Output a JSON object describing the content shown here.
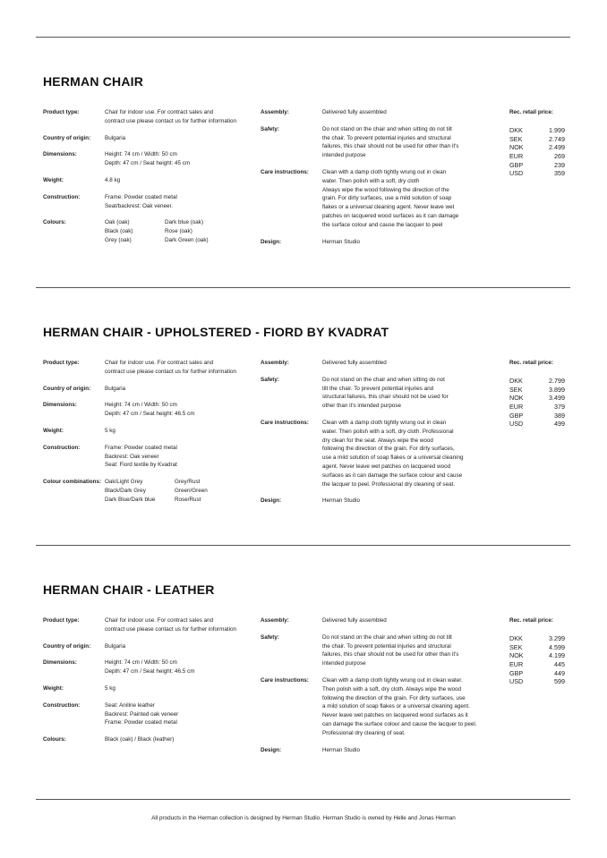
{
  "sections": [
    {
      "title": "HERMAN CHAIR",
      "left": [
        {
          "label": "Product type:",
          "lines": [
            "Chair for indoor use. For contract sales and",
            "contract use please contact us for further information"
          ]
        },
        {
          "label": "Country of origin:",
          "lines": [
            "Bulgaria"
          ]
        },
        {
          "label": "Dimensions:",
          "lines": [
            "Height: 74 cm / Width: 50 cm",
            "Depth: 47 cm / Seat height: 45 cm"
          ]
        },
        {
          "label": "Weight:",
          "lines": [
            "4.8 kg"
          ]
        },
        {
          "label": "Construction:",
          "lines": [
            "Frame: Powder coated metal",
            "Seat/backrest: Oak veneer."
          ]
        },
        {
          "label": "Colours:",
          "grid": [
            [
              "Oak (oak)",
              "Dark blue (oak)"
            ],
            [
              "Black (oak)",
              "Rose (oak)"
            ],
            [
              "Grey (oak)",
              "Dark Green (oak)"
            ]
          ]
        }
      ],
      "mid": [
        {
          "label": "Assembly:",
          "lines": [
            "Delivered fully assembled"
          ]
        },
        {
          "label": "Safety:",
          "lines": [
            "Do not stand on the chair and when sitting do not tilt",
            "the chair. To prevent potential injuries and structural",
            "failures, this chair should not be used for other than it's",
            "intended purpose"
          ]
        },
        {
          "label": "Care instructions:",
          "lines": [
            "Clean with a damp cloth tightly wrung out in clean",
            "water. Then polish with a soft, dry cloth",
            "Always wipe the wood following the direction of the",
            "grain. For dirty surfaces, use a mild solution of soap",
            "flakes or a universal cleaning agent. Never leave wet",
            "patches on lacquered wood surfaces as it can damage",
            "the surface colour and cause the lacquer to peel"
          ]
        },
        {
          "label": "Design:",
          "lines": [
            "Herman Studio"
          ]
        }
      ],
      "prices_label": "Rec. retail price:",
      "prices": [
        {
          "currency": "DKK",
          "amount": "1.999"
        },
        {
          "currency": "SEK",
          "amount": "2.749"
        },
        {
          "currency": "NOK",
          "amount": "2.499"
        },
        {
          "currency": "EUR",
          "amount": "269"
        },
        {
          "currency": "GBP",
          "amount": "239"
        },
        {
          "currency": "USD",
          "amount": "359"
        }
      ]
    },
    {
      "title": "HERMAN CHAIR - UPHOLSTERED - FIORD BY KVADRAT",
      "left": [
        {
          "label": "Product type:",
          "lines": [
            "Chair for indoor use. For contract sales and",
            "contract use please contact us for further information"
          ]
        },
        {
          "label": "Country of origin:",
          "lines": [
            "Bulgaria"
          ]
        },
        {
          "label": "Dimensions:",
          "lines": [
            "Height: 74 cm / Width: 50 cm",
            "Depth: 47 cm / Seat height: 46.5 cm"
          ]
        },
        {
          "label": "Weight:",
          "lines": [
            "5 kg"
          ]
        },
        {
          "label": "Construction:",
          "lines": [
            "Frame: Powder coated metal",
            "Backrest: Oak veneer",
            "Seat: Fiord textile by Kvadrat"
          ]
        },
        {
          "label": "Colour combinations:",
          "grid": [
            [
              "Oak/Light Grey",
              "Grey/Rust"
            ],
            [
              "Black/Dark Grey",
              "Green/Green"
            ],
            [
              "Dark Blue/Dark blue",
              "Rose/Rust"
            ]
          ]
        }
      ],
      "mid": [
        {
          "label": "Assembly:",
          "lines": [
            "Delivered fully assembled"
          ]
        },
        {
          "label": "Safety:",
          "lines": [
            "Do not stand on the chair and when sitting do not",
            "tilt the chair. To prevent potential injuries and",
            "structural failures, this chair should not be used for",
            "other than it's intended purpose"
          ]
        },
        {
          "label": "Care instructions:",
          "lines": [
            "Clean with a damp cloth tightly wrung out in clean",
            "water. Then polish with a soft, dry cloth. Professional",
            "dry clean for the seat. Always wipe the wood",
            "following the direction of the grain. For dirty surfaces,",
            "use a mild solution of soap flakes or a universal cleaning",
            "agent. Never leave wet patches on lacquered wood",
            "surfaces as it can damage the surface colour and cause",
            "the lacquer to peel. Professional dry cleaning of seat."
          ]
        },
        {
          "label": "Design:",
          "lines": [
            "Herman Studio"
          ]
        }
      ],
      "prices_label": "Rec. retail price:",
      "prices": [
        {
          "currency": "DKK",
          "amount": "2.799"
        },
        {
          "currency": "SEK",
          "amount": "3.899"
        },
        {
          "currency": "NOK",
          "amount": "3.499"
        },
        {
          "currency": "EUR",
          "amount": "379"
        },
        {
          "currency": "GBP",
          "amount": "389"
        },
        {
          "currency": "USD",
          "amount": "499"
        }
      ]
    },
    {
      "title": "HERMAN CHAIR - LEATHER",
      "left": [
        {
          "label": "Product type:",
          "lines": [
            "Chair for indoor use. For contract sales and",
            "contract use please contact us for further information"
          ]
        },
        {
          "label": "Country of origin:",
          "lines": [
            "Bulgaria"
          ]
        },
        {
          "label": "Dimensions:",
          "lines": [
            "Height: 74 cm / Width: 50 cm",
            "Depth: 47 cm / Seat height: 46.5 cm"
          ]
        },
        {
          "label": "Weight:",
          "lines": [
            "5 kg"
          ]
        },
        {
          "label": "Construction:",
          "lines": [
            "Seat: Aniline leather",
            "Backrest: Painted oak veneer",
            "Frame: Powder coated metal"
          ]
        },
        {
          "label": "Colours:",
          "lines": [
            "Black (oak) / Black (leather)"
          ]
        }
      ],
      "mid": [
        {
          "label": "Assembly:",
          "lines": [
            "Delivered fully assembled"
          ]
        },
        {
          "label": "Safety:",
          "lines": [
            "Do not stand on the chair and when sitting do not tilt",
            "the chair. To prevent potential injuries and structural",
            "failures, this chair should not be used for other than it's",
            "intended purpose"
          ]
        },
        {
          "label": "Care instructions:",
          "lines": [
            "Clean with a damp cloth tightly wrung out in clean water.",
            "Then polish with a soft, dry cloth. Always wipe the wood",
            "following the direction of the grain. For dirty surfaces, use",
            "a mild solution of soap flakes or a universal cleaning agent.",
            "Never leave wet patches on lacquered wood surfaces as it",
            "can damage the surface colour and cause the lacquer to peel.",
            "Professional dry cleaning of seat."
          ]
        },
        {
          "label": "Design:",
          "lines": [
            "Herman Studio"
          ]
        }
      ],
      "prices_label": "Rec. retail price:",
      "prices": [
        {
          "currency": "DKK",
          "amount": "3.299"
        },
        {
          "currency": "SEK",
          "amount": "4.599"
        },
        {
          "currency": "NOK",
          "amount": "4.199"
        },
        {
          "currency": "EUR",
          "amount": "445"
        },
        {
          "currency": "GBP",
          "amount": "449"
        },
        {
          "currency": "USD",
          "amount": "599"
        }
      ]
    }
  ],
  "footer": "All products in the Herman collection is designed by Herman Studio. Herman Studio is owned by Helle and Jonas Herman"
}
